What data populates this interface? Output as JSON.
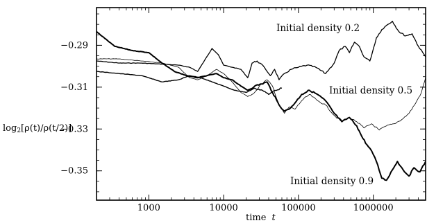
{
  "chart_data": {
    "type": "line",
    "xlabel_text": "time",
    "xlabel_var": "t",
    "ylabel_prefix": "log",
    "ylabel_sub": "2",
    "ylabel_body": "[ρ(t)/ρ(t/2)]",
    "x_scale": "log",
    "xlim": [
      200,
      5000000
    ],
    "ylim": [
      -0.364,
      -0.272
    ],
    "x_ticks": [
      1000,
      10000,
      100000,
      1000000
    ],
    "x_tick_labels": [
      "1000",
      "10000",
      "100000",
      "1000000"
    ],
    "y_ticks": [
      -0.29,
      -0.31,
      -0.33,
      -0.35
    ],
    "y_tick_labels": [
      "−0.29",
      "−0.31",
      "−0.33",
      "−0.35"
    ],
    "grid": false,
    "series": [
      {
        "name": "Initial density 0.2",
        "line_width": 1.3,
        "points": [
          [
            200,
            -0.2975
          ],
          [
            400,
            -0.2985
          ],
          [
            800,
            -0.2985
          ],
          [
            1500,
            -0.299
          ],
          [
            2500,
            -0.2995
          ],
          [
            3500,
            -0.3005
          ],
          [
            4500,
            -0.3025
          ],
          [
            5500,
            -0.2975
          ],
          [
            7000,
            -0.2915
          ],
          [
            8500,
            -0.2945
          ],
          [
            10000,
            -0.2995
          ],
          [
            13000,
            -0.3005
          ],
          [
            17000,
            -0.3015
          ],
          [
            21000,
            -0.3055
          ],
          [
            24000,
            -0.2985
          ],
          [
            28000,
            -0.2975
          ],
          [
            35000,
            -0.3005
          ],
          [
            42000,
            -0.3045
          ],
          [
            48000,
            -0.3015
          ],
          [
            55000,
            -0.3065
          ],
          [
            65000,
            -0.3035
          ],
          [
            80000,
            -0.3015
          ],
          [
            100000,
            -0.3005
          ],
          [
            130000,
            -0.2995
          ],
          [
            170000,
            -0.3005
          ],
          [
            230000,
            -0.3035
          ],
          [
            300000,
            -0.2985
          ],
          [
            350000,
            -0.2925
          ],
          [
            420000,
            -0.2905
          ],
          [
            480000,
            -0.2935
          ],
          [
            560000,
            -0.2885
          ],
          [
            650000,
            -0.2905
          ],
          [
            750000,
            -0.2955
          ],
          [
            900000,
            -0.2975
          ],
          [
            1100000,
            -0.2865
          ],
          [
            1300000,
            -0.2825
          ],
          [
            1500000,
            -0.2805
          ],
          [
            1800000,
            -0.2785
          ],
          [
            2200000,
            -0.2835
          ],
          [
            2700000,
            -0.2855
          ],
          [
            3300000,
            -0.2845
          ],
          [
            4000000,
            -0.2905
          ],
          [
            5000000,
            -0.2955
          ]
        ]
      },
      {
        "name": "Initial density 0.5",
        "line_width": 0.8,
        "points": [
          [
            200,
            -0.2965
          ],
          [
            400,
            -0.2965
          ],
          [
            800,
            -0.2975
          ],
          [
            1500,
            -0.2985
          ],
          [
            2500,
            -0.3005
          ],
          [
            3500,
            -0.3055
          ],
          [
            4500,
            -0.3065
          ],
          [
            6000,
            -0.3045
          ],
          [
            8000,
            -0.3015
          ],
          [
            10000,
            -0.3035
          ],
          [
            13000,
            -0.3075
          ],
          [
            17000,
            -0.3125
          ],
          [
            21000,
            -0.3145
          ],
          [
            26000,
            -0.3125
          ],
          [
            32000,
            -0.3085
          ],
          [
            38000,
            -0.3065
          ],
          [
            45000,
            -0.3095
          ],
          [
            55000,
            -0.3185
          ],
          [
            65000,
            -0.3225
          ],
          [
            75000,
            -0.3195
          ],
          [
            90000,
            -0.3205
          ],
          [
            110000,
            -0.3165
          ],
          [
            140000,
            -0.3135
          ],
          [
            180000,
            -0.3165
          ],
          [
            230000,
            -0.3185
          ],
          [
            300000,
            -0.3235
          ],
          [
            380000,
            -0.3265
          ],
          [
            480000,
            -0.3245
          ],
          [
            600000,
            -0.3265
          ],
          [
            750000,
            -0.3295
          ],
          [
            950000,
            -0.3275
          ],
          [
            1200000,
            -0.3305
          ],
          [
            1500000,
            -0.3285
          ],
          [
            1900000,
            -0.3275
          ],
          [
            2400000,
            -0.3255
          ],
          [
            3000000,
            -0.3225
          ],
          [
            3700000,
            -0.3175
          ],
          [
            4400000,
            -0.3125
          ],
          [
            5000000,
            -0.3055
          ]
        ]
      },
      {
        "name": "Initial density 0.9",
        "line_width": 2.0,
        "points": [
          [
            200,
            -0.2835
          ],
          [
            350,
            -0.2905
          ],
          [
            600,
            -0.2925
          ],
          [
            1000,
            -0.2935
          ],
          [
            1500,
            -0.2985
          ],
          [
            2200,
            -0.3025
          ],
          [
            3200,
            -0.3045
          ],
          [
            4500,
            -0.3055
          ],
          [
            6000,
            -0.3045
          ],
          [
            8000,
            -0.3035
          ],
          [
            10000,
            -0.3055
          ],
          [
            13000,
            -0.3065
          ],
          [
            17000,
            -0.3095
          ],
          [
            21000,
            -0.3115
          ],
          [
            26000,
            -0.3095
          ],
          [
            32000,
            -0.3085
          ],
          [
            38000,
            -0.3075
          ],
          [
            45000,
            -0.3125
          ],
          [
            55000,
            -0.3185
          ],
          [
            65000,
            -0.3215
          ],
          [
            75000,
            -0.3205
          ],
          [
            90000,
            -0.3175
          ],
          [
            110000,
            -0.3135
          ],
          [
            140000,
            -0.3115
          ],
          [
            180000,
            -0.3135
          ],
          [
            230000,
            -0.3165
          ],
          [
            300000,
            -0.3225
          ],
          [
            380000,
            -0.3265
          ],
          [
            480000,
            -0.3245
          ],
          [
            600000,
            -0.3285
          ],
          [
            700000,
            -0.3335
          ],
          [
            820000,
            -0.3375
          ],
          [
            950000,
            -0.3405
          ],
          [
            1100000,
            -0.3455
          ],
          [
            1300000,
            -0.3535
          ],
          [
            1500000,
            -0.3545
          ],
          [
            1800000,
            -0.3495
          ],
          [
            2100000,
            -0.3455
          ],
          [
            2500000,
            -0.3495
          ],
          [
            3000000,
            -0.3525
          ],
          [
            3500000,
            -0.3485
          ],
          [
            4200000,
            -0.3505
          ],
          [
            5000000,
            -0.3455
          ]
        ]
      },
      {
        "name": "",
        "line_width": 1.4,
        "points": [
          [
            200,
            -0.3025
          ],
          [
            400,
            -0.3035
          ],
          [
            800,
            -0.3045
          ],
          [
            1500,
            -0.3075
          ],
          [
            2500,
            -0.3065
          ],
          [
            3500,
            -0.3045
          ],
          [
            5000,
            -0.3055
          ],
          [
            7000,
            -0.3075
          ],
          [
            10000,
            -0.3095
          ],
          [
            14000,
            -0.3115
          ],
          [
            20000,
            -0.3125
          ],
          [
            26000,
            -0.3105
          ],
          [
            33000,
            -0.3115
          ],
          [
            40000,
            -0.3135
          ],
          [
            48000,
            -0.3115
          ],
          [
            60000,
            -0.3105
          ]
        ]
      }
    ],
    "annotations": [
      {
        "text": "Initial density 0.2"
      },
      {
        "text": "Initial density 0.5"
      },
      {
        "text": "Initial density 0.9"
      }
    ]
  }
}
